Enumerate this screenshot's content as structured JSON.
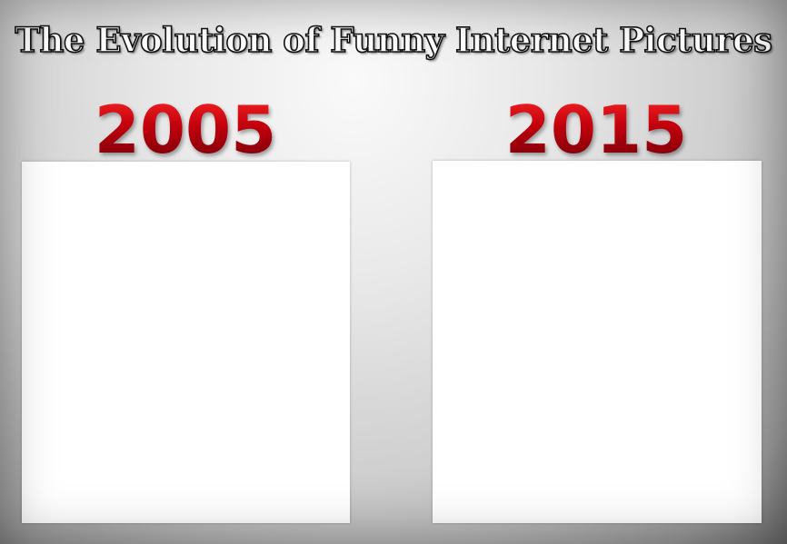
{
  "title": "The Evolution of Funny Internet Pictures",
  "panels": [
    {
      "year": "2005"
    },
    {
      "year": "2015"
    }
  ],
  "colors": {
    "year_red": "#c1000c",
    "title_fill": "#ffffff",
    "title_outline": "#111111",
    "panel_fill": "#ffffff"
  }
}
